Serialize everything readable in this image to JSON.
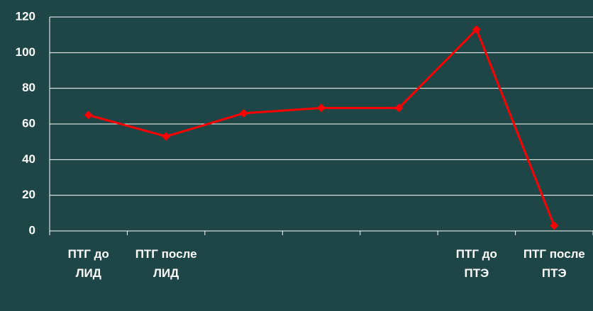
{
  "chart_data": {
    "type": "line",
    "categories": [
      "ПТГ до ЛИД",
      "ПТГ после ЛИД",
      null,
      null,
      null,
      "ПТГ до ПТЭ",
      "ПТГ после ПТЭ"
    ],
    "values": [
      65,
      53,
      66,
      69,
      69,
      113,
      3
    ],
    "color": "#ff0000",
    "ylim": [
      0,
      120
    ],
    "yticks": [
      0,
      20,
      40,
      60,
      80,
      100,
      120
    ],
    "grid": true
  }
}
